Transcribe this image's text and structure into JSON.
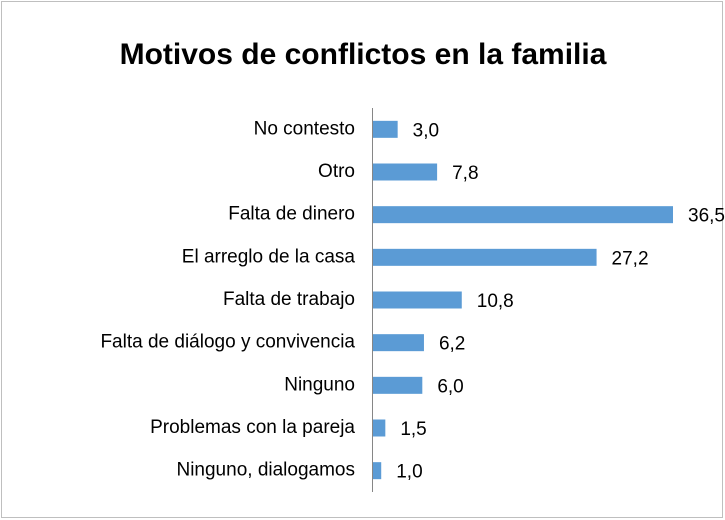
{
  "chart_data": {
    "type": "bar",
    "orientation": "horizontal",
    "title": "Motivos de conflictos en la familia",
    "categories": [
      "No contesto",
      "Otro",
      "Falta de dinero",
      "El arreglo de la casa",
      "Falta de trabajo",
      "Falta de diálogo y convivencia",
      "Ninguno",
      "Problemas con la pareja",
      "Ninguno, dialogamos"
    ],
    "values": [
      3.0,
      7.8,
      36.5,
      27.2,
      10.8,
      6.2,
      6.0,
      1.5,
      1.0
    ],
    "value_labels": [
      "3,0",
      "7,8",
      "36,5",
      "27,2",
      "10,8",
      "6,2",
      "6,0",
      "1,5",
      "1,0"
    ],
    "color": "#5b9bd5"
  }
}
